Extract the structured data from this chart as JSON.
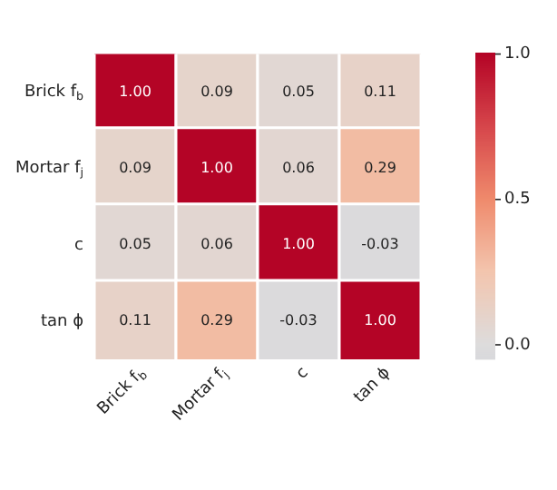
{
  "chart_data": {
    "type": "heatmap",
    "categories": [
      "Brick f$_{b}$",
      "Mortar f$_{j}$",
      "c",
      "tan ϕ"
    ],
    "y_categories": [
      "Brick f$_{b}$",
      "Mortar f$_{j}$",
      "c",
      "tan ϕ"
    ],
    "cells": [
      [
        1.0,
        0.09,
        0.05,
        0.11
      ],
      [
        0.09,
        1.0,
        0.06,
        0.29
      ],
      [
        0.05,
        0.06,
        1.0,
        -0.03
      ],
      [
        0.11,
        0.29,
        -0.03,
        1.0
      ]
    ],
    "cell_labels": [
      [
        "1.00",
        "0.09",
        "0.05",
        "0.11"
      ],
      [
        "0.09",
        "1.00",
        "0.06",
        "0.29"
      ],
      [
        "0.05",
        "0.06",
        "1.00",
        "-0.03"
      ],
      [
        "0.11",
        "0.29",
        "-0.03",
        "1.00"
      ]
    ],
    "clim": [
      -0.05,
      1.0
    ],
    "cticks": [
      {
        "value": 0,
        "label": "0.0"
      },
      {
        "value": 0.5,
        "label": "0.5"
      },
      {
        "value": 1,
        "label": "1.0"
      }
    ]
  }
}
